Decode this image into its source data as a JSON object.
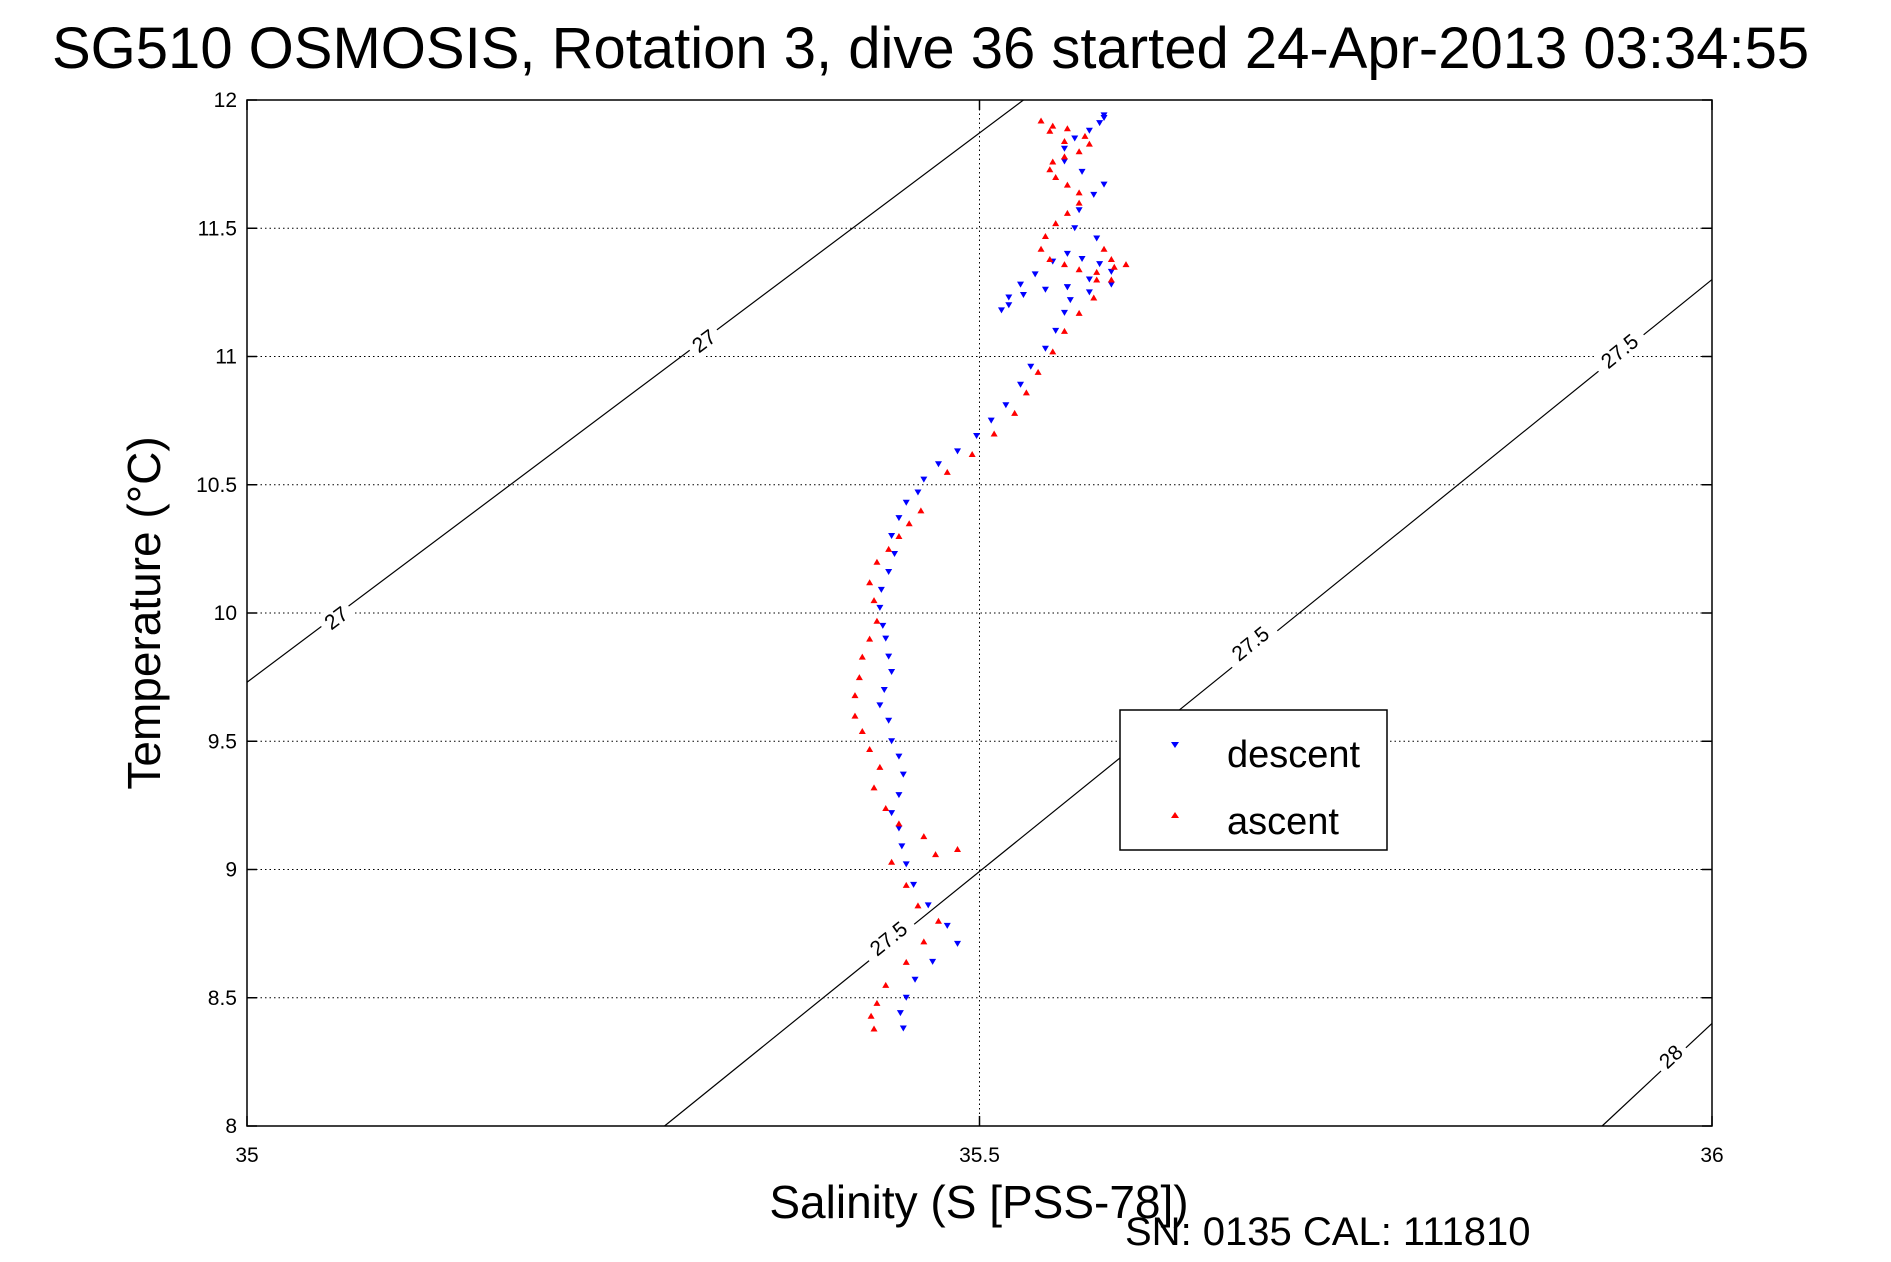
{
  "chart_data": {
    "type": "scatter",
    "title": "SG510 OSMOSIS, Rotation 3, dive 36 started 24-Apr-2013 03:34:55",
    "xlabel": "Salinity (S [PSS-78])",
    "ylabel": "Temperature (°C)",
    "xlim": [
      35,
      36
    ],
    "ylim": [
      8,
      12
    ],
    "xticks": [
      35,
      35.5,
      36
    ],
    "xtick_labels": [
      "35",
      "35.5",
      "36"
    ],
    "yticks": [
      8,
      8.5,
      9,
      9.5,
      10,
      10.5,
      11,
      11.5,
      12
    ],
    "ytick_labels": [
      "8",
      "8.5",
      "9",
      "9.5",
      "10",
      "10.5",
      "11",
      "11.5",
      "12"
    ],
    "grid": true,
    "legend_position": "center-right",
    "footer": "SN: 0135  CAL: 111810",
    "series": [
      {
        "name": "descent",
        "color": "#0000ff",
        "marker": "triangle-down",
        "x": [
          35.448,
          35.446,
          35.45,
          35.456,
          35.468,
          35.485,
          35.478,
          35.465,
          35.455,
          35.45,
          35.447,
          35.445,
          35.44,
          35.445,
          35.448,
          35.445,
          35.44,
          35.438,
          35.432,
          35.435,
          35.44,
          35.438,
          35.436,
          35.434,
          35.432,
          35.433,
          35.438,
          35.442,
          35.44,
          35.445,
          35.45,
          35.458,
          35.462,
          35.472,
          35.485,
          35.498,
          35.508,
          35.518,
          35.528,
          35.535,
          35.545,
          35.552,
          35.558,
          35.562,
          35.56,
          35.575,
          35.59,
          35.582,
          35.57,
          35.56,
          35.55,
          35.538,
          35.528,
          35.52,
          35.515,
          35.52,
          35.53,
          35.545,
          35.56,
          35.575,
          35.59,
          35.58,
          35.565,
          35.568,
          35.578,
          35.585,
          35.57,
          35.558,
          35.558,
          35.565,
          35.575,
          35.582,
          35.585,
          35.585
        ],
        "y": [
          8.38,
          8.44,
          8.5,
          8.57,
          8.64,
          8.71,
          8.78,
          8.86,
          8.94,
          9.02,
          9.09,
          9.16,
          9.22,
          9.29,
          9.37,
          9.44,
          9.5,
          9.58,
          9.64,
          9.7,
          9.77,
          9.83,
          9.9,
          9.95,
          10.02,
          10.09,
          10.16,
          10.23,
          10.3,
          10.37,
          10.43,
          10.47,
          10.52,
          10.58,
          10.63,
          10.69,
          10.75,
          10.81,
          10.89,
          10.96,
          11.03,
          11.1,
          11.17,
          11.22,
          11.27,
          11.3,
          11.33,
          11.36,
          11.38,
          11.4,
          11.37,
          11.32,
          11.28,
          11.23,
          11.18,
          11.2,
          11.24,
          11.26,
          11.27,
          11.25,
          11.28,
          11.46,
          11.5,
          11.57,
          11.63,
          11.67,
          11.72,
          11.76,
          11.81,
          11.85,
          11.88,
          11.91,
          11.93,
          11.94
        ]
      },
      {
        "name": "ascent",
        "color": "#ff0000",
        "marker": "triangle-up",
        "x": [
          35.428,
          35.426,
          35.43,
          35.436,
          35.45,
          35.462,
          35.472,
          35.458,
          35.45,
          35.44,
          35.47,
          35.485,
          35.462,
          35.445,
          35.436,
          35.428,
          35.432,
          35.425,
          35.42,
          35.415,
          35.415,
          35.418,
          35.42,
          35.425,
          35.43,
          35.428,
          35.425,
          35.43,
          35.438,
          35.445,
          35.452,
          35.46,
          35.478,
          35.495,
          35.51,
          35.524,
          35.532,
          35.54,
          35.55,
          35.558,
          35.568,
          35.578,
          35.59,
          35.6,
          35.585,
          35.58,
          35.59,
          35.592,
          35.58,
          35.568,
          35.558,
          35.548,
          35.542,
          35.545,
          35.552,
          35.56,
          35.568,
          35.568,
          35.56,
          35.552,
          35.548,
          35.55,
          35.558,
          35.568,
          35.575,
          35.572,
          35.56,
          35.55,
          35.542,
          35.548,
          35.558
        ],
        "y": [
          8.38,
          8.43,
          8.48,
          8.55,
          8.64,
          8.72,
          8.8,
          8.86,
          8.94,
          9.03,
          9.06,
          9.08,
          9.13,
          9.18,
          9.24,
          9.32,
          9.4,
          9.47,
          9.54,
          9.6,
          9.68,
          9.75,
          9.83,
          9.9,
          9.97,
          10.05,
          10.12,
          10.2,
          10.25,
          10.3,
          10.35,
          10.4,
          10.55,
          10.62,
          10.7,
          10.78,
          10.86,
          10.94,
          11.02,
          11.1,
          11.17,
          11.23,
          11.3,
          11.36,
          11.42,
          11.33,
          11.38,
          11.35,
          11.3,
          11.34,
          11.36,
          11.38,
          11.42,
          11.47,
          11.52,
          11.56,
          11.6,
          11.64,
          11.67,
          11.7,
          11.73,
          11.76,
          11.78,
          11.8,
          11.83,
          11.86,
          11.89,
          11.9,
          11.92,
          11.88,
          11.84
        ]
      }
    ],
    "contours": [
      {
        "label": "27",
        "points": [
          [
            35.0,
            9.73
          ],
          [
            35.53,
            12.0
          ]
        ],
        "labels_at": [
          [
            35.061,
            9.98
          ],
          [
            35.312,
            11.06
          ]
        ]
      },
      {
        "label": "27.5",
        "points": [
          [
            35.285,
            8.0
          ],
          [
            36.0,
            11.3
          ]
        ],
        "labels_at": [
          [
            35.438,
            8.73
          ],
          [
            35.685,
            9.88
          ],
          [
            35.937,
            11.02
          ]
        ]
      },
      {
        "label": "28",
        "points": [
          [
            35.925,
            8.0
          ],
          [
            36.0,
            8.4
          ]
        ],
        "labels_at": [
          [
            35.972,
            8.27
          ]
        ]
      }
    ]
  }
}
